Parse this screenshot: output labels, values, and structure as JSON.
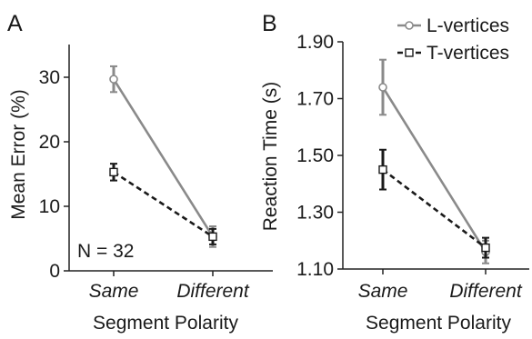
{
  "panels": [
    {
      "letter": "A"
    },
    {
      "letter": "B"
    }
  ],
  "legend": {
    "items": [
      {
        "label": "L-vertices",
        "marker": "circle",
        "line": "solid",
        "color": "#8a8a8a"
      },
      {
        "label": "T-vertices",
        "marker": "square",
        "line": "dashed",
        "color": "#1a1a1a"
      }
    ]
  },
  "annotation": "N = 32",
  "chart_data": [
    {
      "type": "line",
      "panel": "A",
      "categories": [
        "Same",
        "Different"
      ],
      "xlabel": "Segment Polarity",
      "ylabel": "Mean Error (%)",
      "ylim": [
        0,
        33
      ],
      "yticks": [
        0,
        10,
        20,
        30
      ],
      "ytick_labels": [
        "0",
        "10",
        "20",
        "30"
      ],
      "grid": false,
      "legend": "none",
      "series": [
        {
          "name": "L-vertices",
          "values": [
            29.7,
            5.3
          ],
          "err": [
            2.0,
            1.6
          ]
        },
        {
          "name": "T-vertices",
          "values": [
            15.3,
            5.3
          ],
          "err": [
            1.3,
            1.2
          ]
        }
      ]
    },
    {
      "type": "line",
      "panel": "B",
      "categories": [
        "Same",
        "Different"
      ],
      "xlabel": "Segment Polarity",
      "ylabel": "Reaction Time (s)",
      "ylim": [
        1.1,
        1.9
      ],
      "yticks": [
        1.1,
        1.3,
        1.5,
        1.7,
        1.9
      ],
      "ytick_labels": [
        "1.10",
        "1.30",
        "1.50",
        "1.70",
        "1.90"
      ],
      "grid": false,
      "legend": "top-right",
      "series": [
        {
          "name": "L-vertices",
          "values": [
            1.74,
            1.16
          ],
          "err": [
            0.097,
            0.04
          ]
        },
        {
          "name": "T-vertices",
          "values": [
            1.45,
            1.175
          ],
          "err": [
            0.07,
            0.035
          ]
        }
      ]
    }
  ]
}
